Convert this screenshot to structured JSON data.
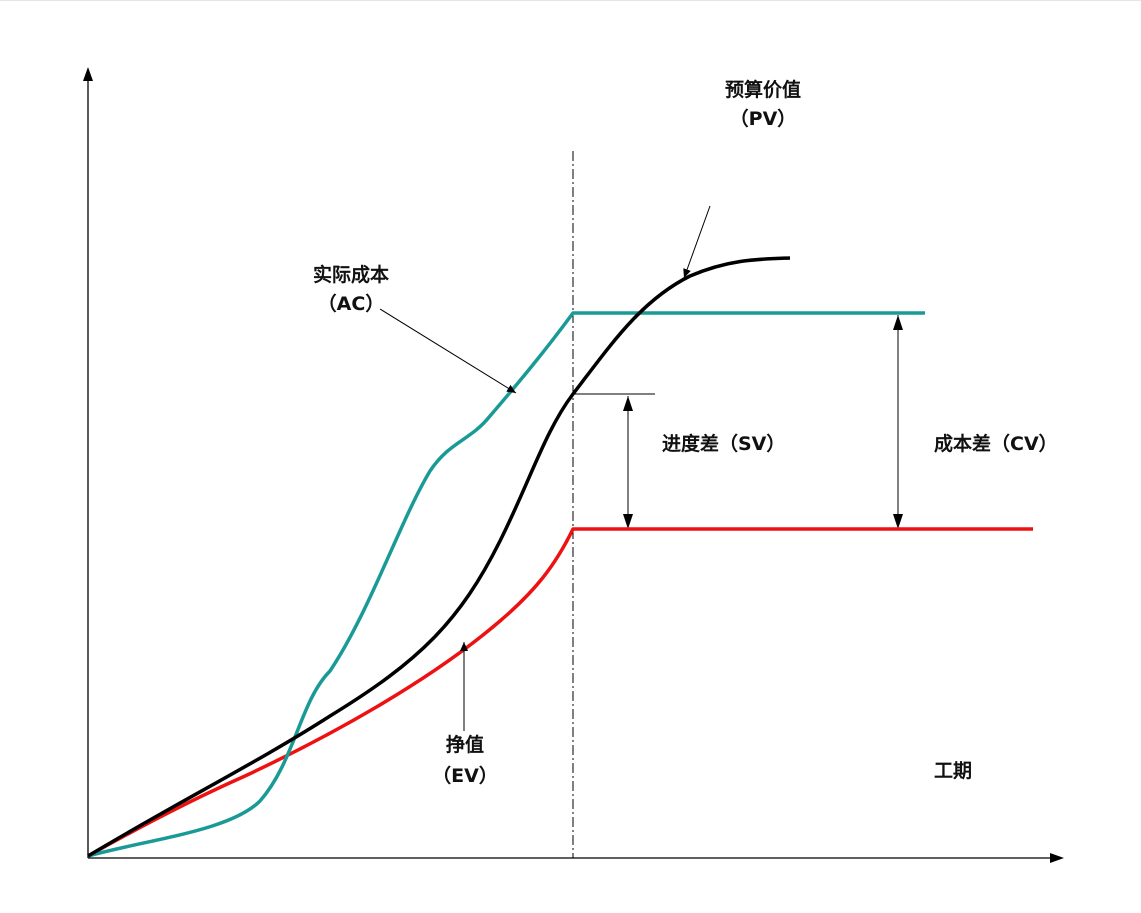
{
  "diagram": {
    "labels": {
      "pv_name": "预算价值",
      "pv_abbr": "（PV）",
      "ac_name": "实际成本",
      "ac_abbr": "（AC）",
      "ev_name": "挣值",
      "ev_abbr": "（EV）",
      "sv": "进度差（SV）",
      "cv": "成本差（CV）",
      "x_axis": "工期"
    },
    "curves": [
      {
        "id": "pv",
        "label_key": "pv_name",
        "color": "#000000"
      },
      {
        "id": "ac",
        "label_key": "ac_name",
        "color": "#1a9a96"
      },
      {
        "id": "ev",
        "label_key": "ev_name",
        "color": "#ee1111"
      }
    ]
  }
}
